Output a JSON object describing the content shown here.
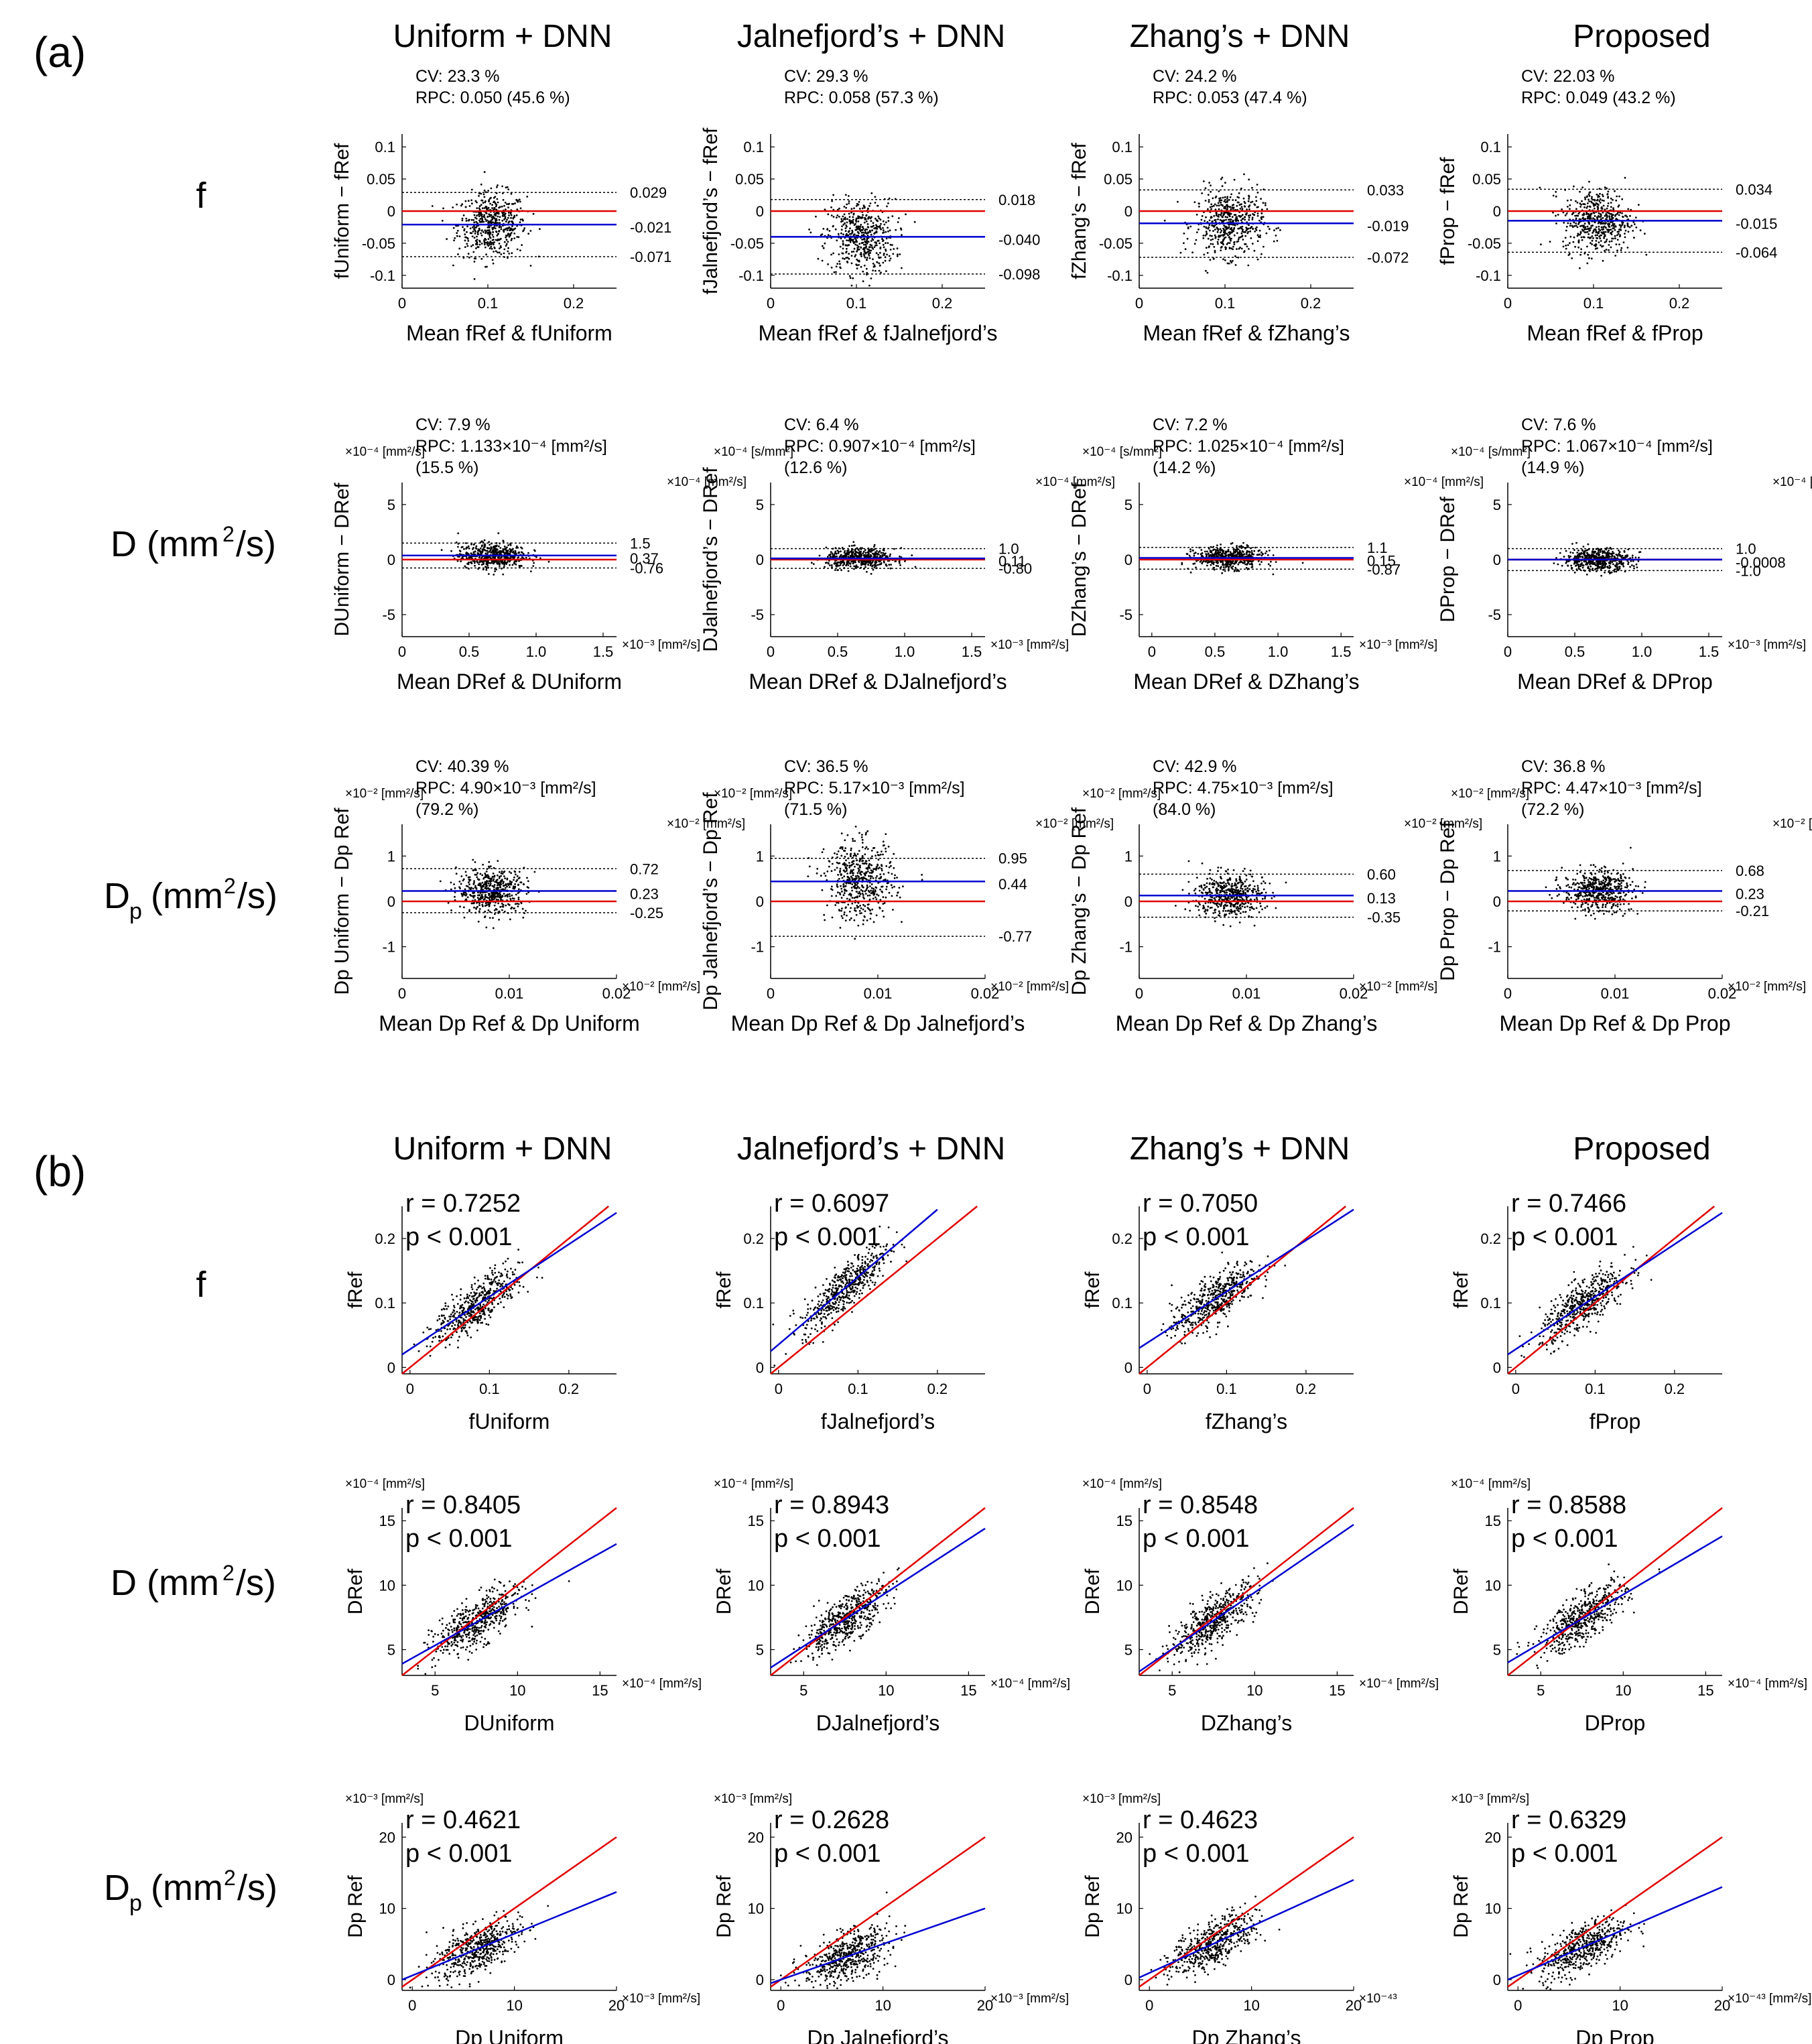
{
  "figure": {
    "panel_a_label": "(a)",
    "panel_b_label": "(b)",
    "column_titles": [
      "Uniform + DNN",
      "Jalnefjord’s + DNN",
      "Zhang’s + DNN",
      "Proposed"
    ],
    "row_labels": [
      {
        "main": "f",
        "sub": "",
        "unit": "",
        "sup": ""
      },
      {
        "main": "D (mm",
        "sub": "",
        "sup": "2",
        "unit": "/s)"
      },
      {
        "main": "D",
        "sub": "p",
        "sup": "2",
        "unit": "(mm"
      }
    ],
    "colors": {
      "reference_line": "#e00000",
      "fit_line": "#0000d0",
      "bias_line": "#0000d0",
      "zero_line": "#e00000",
      "points": "#000000"
    }
  },
  "chart_data": [
    {
      "type": "scatter",
      "panel": "a",
      "row": "f",
      "method": "Uniform + DNN",
      "stats": [
        "CV: 23.3 %",
        "RPC: 0.050 (45.6 %)"
      ],
      "ylabel": "fUniform − fRef",
      "xlabel": "Mean fRef & fUniform",
      "xlim": [
        0,
        0.25
      ],
      "ylim": [
        -0.12,
        0.12
      ],
      "xticks": [
        "0",
        "0.1",
        "0.2"
      ],
      "yticks": [
        "0.1",
        "0.05",
        "0",
        "-0.05",
        "-0.1"
      ],
      "bias": -0.021,
      "loa": [
        0.029,
        -0.071
      ],
      "line_labels": [
        "0.029",
        "-0.021",
        "-0.071"
      ]
    },
    {
      "type": "scatter",
      "panel": "a",
      "row": "f",
      "method": "Jalnefjord’s + DNN",
      "stats": [
        "CV: 29.3 %",
        "RPC: 0.058 (57.3 %)"
      ],
      "ylabel": "fJalnefjord’s − fRef",
      "xlabel": "Mean fRef & fJalnefjord’s",
      "xlim": [
        0,
        0.25
      ],
      "ylim": [
        -0.12,
        0.12
      ],
      "xticks": [
        "0",
        "0.1",
        "0.2"
      ],
      "yticks": [
        "0.1",
        "0.05",
        "0",
        "-0.05",
        "-0.1"
      ],
      "bias": -0.04,
      "loa": [
        0.018,
        -0.098
      ],
      "line_labels": [
        "0.018",
        "-0.040",
        "-0.098"
      ]
    },
    {
      "type": "scatter",
      "panel": "a",
      "row": "f",
      "method": "Zhang’s + DNN",
      "stats": [
        "CV: 24.2 %",
        "RPC: 0.053 (47.4 %)"
      ],
      "ylabel": "fZhang’s − fRef",
      "xlabel": "Mean fRef & fZhang’s",
      "xlim": [
        0,
        0.25
      ],
      "ylim": [
        -0.12,
        0.12
      ],
      "xticks": [
        "0",
        "0.1",
        "0.2"
      ],
      "yticks": [
        "0.1",
        "0.05",
        "0",
        "-0.05",
        "-0.1"
      ],
      "bias": -0.019,
      "loa": [
        0.033,
        -0.072
      ],
      "line_labels": [
        "0.033",
        "-0.019",
        "-0.072"
      ]
    },
    {
      "type": "scatter",
      "panel": "a",
      "row": "f",
      "method": "Proposed",
      "stats": [
        "CV: 22.03 %",
        "RPC: 0.049 (43.2 %)"
      ],
      "ylabel": "fProp − fRef",
      "xlabel": "Mean fRef & fProp",
      "xlim": [
        0,
        0.25
      ],
      "ylim": [
        -0.12,
        0.12
      ],
      "xticks": [
        "0",
        "0.1",
        "0.2"
      ],
      "yticks": [
        "0.1",
        "0.05",
        "0",
        "-0.05",
        "-0.1"
      ],
      "bias": -0.015,
      "loa": [
        0.034,
        -0.064
      ],
      "line_labels": [
        "0.034",
        "-0.015",
        "-0.064"
      ]
    },
    {
      "type": "scatter",
      "panel": "a",
      "row": "D",
      "method": "Uniform + DNN",
      "stats": [
        "CV: 7.9 %",
        "RPC: 1.133×10⁻⁴ [mm²/s]",
        "(15.5 %)"
      ],
      "y_unit": "×10⁻⁴ [mm²/s]",
      "x_unit": "×10⁻³ [mm²/s]",
      "right_unit": "×10⁻⁴ [mm²/s]",
      "ylabel": "DUniform − DRef",
      "xlabel": "Mean DRef & DUniform",
      "xlim": [
        0,
        1.6
      ],
      "ylim": [
        -7,
        7
      ],
      "xticks": [
        "0",
        "0.5",
        "1.0",
        "1.5"
      ],
      "yticks": [
        "5",
        "0",
        "-5"
      ],
      "bias": 0.37,
      "loa": [
        1.5,
        -0.76
      ],
      "line_labels": [
        "1.5",
        "0.37",
        "-0.76"
      ]
    },
    {
      "type": "scatter",
      "panel": "a",
      "row": "D",
      "method": "Jalnefjord’s + DNN",
      "stats": [
        "CV: 6.4 %",
        "RPC: 0.907×10⁻⁴ [mm²/s]",
        "(12.6 %)"
      ],
      "y_unit": "×10⁻⁴ [s/mm²]",
      "x_unit": "×10⁻³ [mm²/s]",
      "right_unit": "×10⁻⁴ [mm²/s]",
      "ylabel": "DJalnefjord’s − DRef",
      "xlabel": "Mean DRef & DJalnefjord’s",
      "xlim": [
        0,
        1.6
      ],
      "ylim": [
        -7,
        7
      ],
      "xticks": [
        "0",
        "0.5",
        "1.0",
        "1.5"
      ],
      "yticks": [
        "5",
        "0",
        "-5"
      ],
      "bias": 0.11,
      "loa": [
        1.0,
        -0.8
      ],
      "line_labels": [
        "1.0",
        "0.11",
        "-0.80"
      ]
    },
    {
      "type": "scatter",
      "panel": "a",
      "row": "D",
      "method": "Zhang’s + DNN",
      "stats": [
        "CV: 7.2 %",
        "RPC: 1.025×10⁻⁴ [mm²/s]",
        "(14.2 %)"
      ],
      "y_unit": "×10⁻⁴ [s/mm²]",
      "x_unit": "×10⁻³ [mm²/s]",
      "right_unit": "×10⁻⁴ [mm²/s]",
      "ylabel": "DZhang’s − DRef",
      "xlabel": "Mean DRef & DZhang’s",
      "xlim": [
        -0.1,
        1.6
      ],
      "ylim": [
        -7,
        7
      ],
      "xticks": [
        "0",
        "0.5",
        "1.0",
        "1.5"
      ],
      "yticks": [
        "5",
        "0",
        "-5"
      ],
      "bias": 0.15,
      "loa": [
        1.1,
        -0.87
      ],
      "line_labels": [
        "1.1",
        "0.15",
        "-0.87"
      ]
    },
    {
      "type": "scatter",
      "panel": "a",
      "row": "D",
      "method": "Proposed",
      "stats": [
        "CV: 7.6 %",
        "RPC: 1.067×10⁻⁴ [mm²/s]",
        "(14.9 %)"
      ],
      "y_unit": "×10⁻⁴ [s/mm²]",
      "x_unit": "×10⁻³ [mm²/s]",
      "right_unit": "×10⁻⁴ [mm²/s]",
      "ylabel": "DProp − DRef",
      "xlabel": "Mean DRef & DProp",
      "xlim": [
        0,
        1.6
      ],
      "ylim": [
        -7,
        7
      ],
      "xticks": [
        "0",
        "0.5",
        "1.0",
        "1.5"
      ],
      "yticks": [
        "5",
        "0",
        "-5"
      ],
      "bias": -0.0008,
      "loa": [
        1.0,
        -1.0
      ],
      "line_labels": [
        "1.0",
        "-0.0008",
        "-1.0"
      ]
    },
    {
      "type": "scatter",
      "panel": "a",
      "row": "Dp",
      "method": "Uniform + DNN",
      "stats": [
        "CV: 40.39 %",
        "RPC: 4.90×10⁻³ [mm²/s]",
        "(79.2 %)"
      ],
      "y_unit": "×10⁻² [mm²/s]",
      "x_unit": "×10⁻² [mm²/s]",
      "right_unit": "×10⁻² [mm²/s]",
      "ylabel": "Dp Uniform − Dp Ref",
      "xlabel": "Mean Dp Ref & Dp Uniform",
      "xlim": [
        0,
        0.02
      ],
      "ylim": [
        -1.7,
        1.7
      ],
      "xticks": [
        "0",
        "0.01",
        "0.02"
      ],
      "yticks": [
        "1",
        "0",
        "-1"
      ],
      "bias": 0.23,
      "loa": [
        0.72,
        -0.25
      ],
      "line_labels": [
        "0.72",
        "0.23",
        "-0.25"
      ]
    },
    {
      "type": "scatter",
      "panel": "a",
      "row": "Dp",
      "method": "Jalnefjord’s + DNN",
      "stats": [
        "CV: 36.5 %",
        "RPC: 5.17×10⁻³ [mm²/s]",
        "(71.5 %)"
      ],
      "y_unit": "×10⁻² [mm²/s]",
      "x_unit": "×10⁻² [mm²/s]",
      "right_unit": "×10⁻² [mm²/s]",
      "ylabel": "Dp Jalnefjord’s − Dp Ref",
      "xlabel": "Mean Dp Ref & Dp Jalnefjord’s",
      "xlim": [
        0,
        0.02
      ],
      "ylim": [
        -1.7,
        1.7
      ],
      "xticks": [
        "0",
        "0.01",
        "0.02"
      ],
      "yticks": [
        "1",
        "0",
        "-1"
      ],
      "bias": 0.44,
      "loa": [
        0.95,
        -0.77
      ],
      "line_labels": [
        "0.95",
        "0.44",
        "-0.77"
      ]
    },
    {
      "type": "scatter",
      "panel": "a",
      "row": "Dp",
      "method": "Zhang’s + DNN",
      "stats": [
        "CV: 42.9 %",
        "RPC: 4.75×10⁻³ [mm²/s]",
        "(84.0 %)"
      ],
      "y_unit": "×10⁻² [mm²/s]",
      "x_unit": "×10⁻² [mm²/s]",
      "right_unit": "×10⁻² [mm²/s]",
      "ylabel": "Dp Zhang’s − Dp Ref",
      "xlabel": "Mean Dp Ref & Dp Zhang’s",
      "xlim": [
        0,
        0.02
      ],
      "ylim": [
        -1.7,
        1.7
      ],
      "xticks": [
        "0",
        "0.01",
        "0.02"
      ],
      "yticks": [
        "1",
        "0",
        "-1"
      ],
      "bias": 0.13,
      "loa": [
        0.6,
        -0.35
      ],
      "line_labels": [
        "0.60",
        "0.13",
        "-0.35"
      ]
    },
    {
      "type": "scatter",
      "panel": "a",
      "row": "Dp",
      "method": "Proposed",
      "stats": [
        "CV: 36.8 %",
        "RPC: 4.47×10⁻³ [mm²/s]",
        "(72.2 %)"
      ],
      "y_unit": "×10⁻² [mm²/s]",
      "x_unit": "×10⁻² [mm²/s]",
      "right_unit": "×10⁻² [mm²/s]",
      "ylabel": "Dp Prop − Dp Ref",
      "xlabel": "Mean Dp Ref & Dp Prop",
      "xlim": [
        0,
        0.02
      ],
      "ylim": [
        -1.7,
        1.7
      ],
      "xticks": [
        "0",
        "0.01",
        "0.02"
      ],
      "yticks": [
        "1",
        "0",
        "-1"
      ],
      "bias": 0.23,
      "loa": [
        0.68,
        -0.21
      ],
      "line_labels": [
        "0.68",
        "0.23",
        "-0.21"
      ]
    },
    {
      "type": "scatter",
      "panel": "b",
      "row": "f",
      "method": "Uniform + DNN",
      "stats": [
        "r = 0.7252",
        "p < 0.001"
      ],
      "ylabel": "fRef",
      "xlabel": "fUniform",
      "xlim": [
        -0.01,
        0.26
      ],
      "ylim": [
        -0.01,
        0.25
      ],
      "xticks": [
        "0",
        "0.1",
        "0.2"
      ],
      "yticks": [
        "0.2",
        "0.1",
        "0"
      ],
      "fit_line": [
        [
          -0.01,
          0.02
        ],
        [
          0.26,
          0.24
        ]
      ]
    },
    {
      "type": "scatter",
      "panel": "b",
      "row": "f",
      "method": "Jalnefjord’s + DNN",
      "stats": [
        "r = 0.6097",
        "p < 0.001"
      ],
      "ylabel": "fRef",
      "xlabel": "fJalnefjord’s",
      "xlim": [
        -0.01,
        0.26
      ],
      "ylim": [
        -0.01,
        0.25
      ],
      "xticks": [
        "0",
        "0.1",
        "0.2"
      ],
      "yticks": [
        "0.2",
        "0.1",
        "0"
      ],
      "fit_line": [
        [
          -0.01,
          0.025
        ],
        [
          0.2,
          0.245
        ]
      ]
    },
    {
      "type": "scatter",
      "panel": "b",
      "row": "f",
      "method": "Zhang’s + DNN",
      "stats": [
        "r = 0.7050",
        "p < 0.001"
      ],
      "ylabel": "fRef",
      "xlabel": "fZhang’s",
      "xlim": [
        -0.01,
        0.26
      ],
      "ylim": [
        -0.01,
        0.25
      ],
      "xticks": [
        "0",
        "0.1",
        "0.2"
      ],
      "yticks": [
        "0.2",
        "0.1",
        "0"
      ],
      "fit_line": [
        [
          -0.01,
          0.03
        ],
        [
          0.26,
          0.245
        ]
      ]
    },
    {
      "type": "scatter",
      "panel": "b",
      "row": "f",
      "method": "Proposed",
      "stats": [
        "r = 0.7466",
        "p < 0.001"
      ],
      "ylabel": "fRef",
      "xlabel": "fProp",
      "xlim": [
        -0.01,
        0.26
      ],
      "ylim": [
        -0.01,
        0.25
      ],
      "xticks": [
        "0",
        "0.1",
        "0.2"
      ],
      "yticks": [
        "0.2",
        "0.1",
        "0"
      ],
      "fit_line": [
        [
          -0.01,
          0.02
        ],
        [
          0.26,
          0.24
        ]
      ]
    },
    {
      "type": "scatter",
      "panel": "b",
      "row": "D",
      "method": "Uniform + DNN",
      "stats": [
        "r = 0.8405",
        "p < 0.001"
      ],
      "y_unit": "×10⁻⁴ [mm²/s]",
      "x_unit": "×10⁻⁴ [mm²/s]",
      "ylabel": "DRef",
      "xlabel": "DUniform",
      "xlim": [
        3,
        16
      ],
      "ylim": [
        3,
        16
      ],
      "xticks": [
        "5",
        "10",
        "15"
      ],
      "yticks": [
        "15",
        "10",
        "5"
      ],
      "fit_line": [
        [
          3,
          3.9
        ],
        [
          16,
          13.2
        ]
      ]
    },
    {
      "type": "scatter",
      "panel": "b",
      "row": "D",
      "method": "Jalnefjord’s + DNN",
      "stats": [
        "r = 0.8943",
        "p < 0.001"
      ],
      "y_unit": "×10⁻⁴ [mm²/s]",
      "x_unit": "×10⁻⁴ [mm²/s]",
      "ylabel": "DRef",
      "xlabel": "DJalnefjord’s",
      "xlim": [
        3,
        16
      ],
      "ylim": [
        3,
        16
      ],
      "xticks": [
        "5",
        "10",
        "15"
      ],
      "yticks": [
        "15",
        "10",
        "5"
      ],
      "fit_line": [
        [
          3,
          3.6
        ],
        [
          16,
          14.4
        ]
      ]
    },
    {
      "type": "scatter",
      "panel": "b",
      "row": "D",
      "method": "Zhang’s + DNN",
      "stats": [
        "r = 0.8548",
        "p < 0.001"
      ],
      "y_unit": "×10⁻⁴ [mm²/s]",
      "x_unit": "×10⁻⁴ [mm²/s]",
      "ylabel": "DRef",
      "xlabel": "DZhang’s",
      "xlim": [
        3,
        16
      ],
      "ylim": [
        3,
        16
      ],
      "xticks": [
        "5",
        "10",
        "15"
      ],
      "yticks": [
        "15",
        "10",
        "5"
      ],
      "fit_line": [
        [
          3,
          3.3
        ],
        [
          16,
          14.7
        ]
      ]
    },
    {
      "type": "scatter",
      "panel": "b",
      "row": "D",
      "method": "Proposed",
      "stats": [
        "r = 0.8588",
        "p < 0.001"
      ],
      "y_unit": "×10⁻⁴ [mm²/s]",
      "x_unit": "×10⁻⁴ [mm²/s]",
      "ylabel": "DRef",
      "xlabel": "DProp",
      "xlim": [
        3,
        16
      ],
      "ylim": [
        3,
        16
      ],
      "xticks": [
        "5",
        "10",
        "15"
      ],
      "yticks": [
        "15",
        "10",
        "5"
      ],
      "fit_line": [
        [
          3,
          4.0
        ],
        [
          16,
          13.8
        ]
      ]
    },
    {
      "type": "scatter",
      "panel": "b",
      "row": "Dp",
      "method": "Uniform + DNN",
      "stats": [
        "r = 0.4621",
        "p < 0.001"
      ],
      "y_unit": "×10⁻³ [mm²/s]",
      "x_unit": "×10⁻³ [mm²/s]",
      "ylabel": "Dp Ref",
      "xlabel": "Dp Uniform",
      "xlim": [
        -1,
        20
      ],
      "ylim": [
        -1.5,
        22
      ],
      "xticks": [
        "0",
        "10",
        "20"
      ],
      "yticks": [
        "20",
        "10",
        "0"
      ],
      "fit_line": [
        [
          -1,
          0.0
        ],
        [
          20,
          12.3
        ]
      ]
    },
    {
      "type": "scatter",
      "panel": "b",
      "row": "Dp",
      "method": "Jalnefjord’s + DNN",
      "stats": [
        "r = 0.2628",
        "p < 0.001"
      ],
      "y_unit": "×10⁻³ [mm²/s]",
      "x_unit": "×10⁻³ [mm²/s]",
      "ylabel": "Dp Ref",
      "xlabel": "Dp Jalnefjord’s",
      "xlim": [
        -1,
        20
      ],
      "ylim": [
        -1.5,
        22
      ],
      "xticks": [
        "0",
        "10",
        "20"
      ],
      "yticks": [
        "20",
        "10",
        "0"
      ],
      "fit_line": [
        [
          -1,
          -0.5
        ],
        [
          20,
          10.0
        ]
      ]
    },
    {
      "type": "scatter",
      "panel": "b",
      "row": "Dp",
      "method": "Zhang’s + DNN",
      "stats": [
        "r = 0.4623",
        "p < 0.001"
      ],
      "y_unit": "×10⁻³ [mm²/s]",
      "x_unit": "×10⁻⁴³",
      "ylabel": "Dp Ref",
      "xlabel": "Dp Zhang’s",
      "xlim": [
        -1,
        20
      ],
      "ylim": [
        -1.5,
        22
      ],
      "xticks": [
        "0",
        "10",
        "20"
      ],
      "yticks": [
        "20",
        "10",
        "0"
      ],
      "fit_line": [
        [
          -1,
          0.3
        ],
        [
          20,
          14.0
        ]
      ]
    },
    {
      "type": "scatter",
      "panel": "b",
      "row": "Dp",
      "method": "Proposed",
      "stats": [
        "r = 0.6329",
        "p < 0.001"
      ],
      "y_unit": "×10⁻³ [mm²/s]",
      "x_unit": "×10⁻⁴³ [mm²/s]",
      "ylabel": "Dp Ref",
      "xlabel": "Dp Prop",
      "xlim": [
        -1,
        20
      ],
      "ylim": [
        -1.5,
        22
      ],
      "xticks": [
        "0",
        "10",
        "20"
      ],
      "yticks": [
        "20",
        "10",
        "0"
      ],
      "fit_line": [
        [
          -1,
          0.0
        ],
        [
          20,
          13.0
        ]
      ]
    }
  ]
}
